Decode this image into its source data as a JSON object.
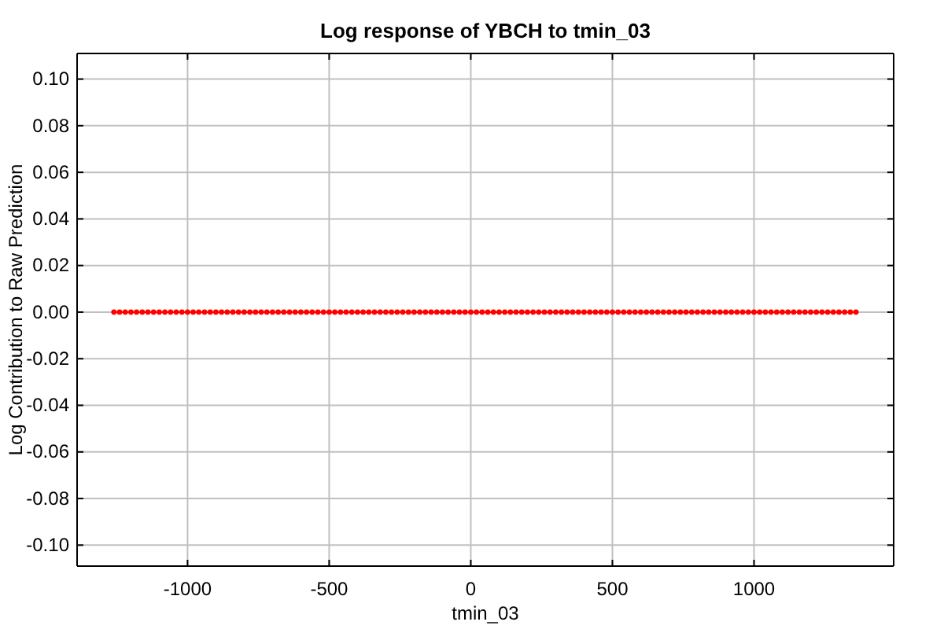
{
  "chart_data": {
    "type": "line",
    "title": "Log response of YBCH to tmin_03",
    "xlabel": "tmin_03",
    "ylabel": "Log Contribution to Raw Prediction",
    "xlim": [
      -1390,
      1493
    ],
    "xticks": [
      -1000,
      -500,
      0,
      500,
      1000
    ],
    "ylim": [
      -0.109,
      0.111
    ],
    "yticks": [
      {
        "value": -0.1,
        "label": "-0.10"
      },
      {
        "value": -0.08,
        "label": "-0.08"
      },
      {
        "value": -0.06,
        "label": "-0.06"
      },
      {
        "value": -0.04,
        "label": "-0.04"
      },
      {
        "value": -0.02,
        "label": "-0.02"
      },
      {
        "value": 0,
        "label": "0.00"
      },
      {
        "value": 0.02,
        "label": "0.02"
      },
      {
        "value": 0.04,
        "label": "0.04"
      },
      {
        "value": 0.06,
        "label": "0.06"
      },
      {
        "value": 0.08,
        "label": "0.08"
      },
      {
        "value": 0.1,
        "label": "0.10"
      }
    ],
    "grid": true,
    "marker": "circle",
    "line_style": "solid",
    "series": [
      {
        "color": "#ff0000",
        "x": [
          -1260,
          -1240,
          -1220,
          -1200,
          -1180,
          -1160,
          -1140,
          -1120,
          -1100,
          -1080,
          -1060,
          -1040,
          -1020,
          -1000,
          -980,
          -960,
          -940,
          -920,
          -900,
          -880,
          -860,
          -840,
          -820,
          -800,
          -780,
          -760,
          -740,
          -720,
          -700,
          -680,
          -660,
          -640,
          -620,
          -600,
          -580,
          -560,
          -540,
          -520,
          -500,
          -480,
          -460,
          -440,
          -420,
          -400,
          -380,
          -360,
          -340,
          -320,
          -300,
          -280,
          -260,
          -240,
          -220,
          -200,
          -180,
          -160,
          -140,
          -120,
          -100,
          -80,
          -60,
          -40,
          -20,
          0,
          20,
          40,
          60,
          80,
          100,
          120,
          140,
          160,
          180,
          200,
          220,
          240,
          260,
          280,
          300,
          320,
          340,
          360,
          380,
          400,
          420,
          440,
          460,
          480,
          500,
          520,
          540,
          560,
          580,
          600,
          620,
          640,
          660,
          680,
          700,
          720,
          740,
          760,
          780,
          800,
          820,
          840,
          860,
          880,
          900,
          920,
          940,
          960,
          980,
          1000,
          1020,
          1040,
          1060,
          1080,
          1100,
          1120,
          1140,
          1160,
          1180,
          1200,
          1220,
          1240,
          1260,
          1280,
          1300,
          1320,
          1340,
          1360
        ],
        "values": [
          0,
          0,
          0,
          0,
          0,
          0,
          0,
          0,
          0,
          0,
          0,
          0,
          0,
          0,
          0,
          0,
          0,
          0,
          0,
          0,
          0,
          0,
          0,
          0,
          0,
          0,
          0,
          0,
          0,
          0,
          0,
          0,
          0,
          0,
          0,
          0,
          0,
          0,
          0,
          0,
          0,
          0,
          0,
          0,
          0,
          0,
          0,
          0,
          0,
          0,
          0,
          0,
          0,
          0,
          0,
          0,
          0,
          0,
          0,
          0,
          0,
          0,
          0,
          0,
          0,
          0,
          0,
          0,
          0,
          0,
          0,
          0,
          0,
          0,
          0,
          0,
          0,
          0,
          0,
          0,
          0,
          0,
          0,
          0,
          0,
          0,
          0,
          0,
          0,
          0,
          0,
          0,
          0,
          0,
          0,
          0,
          0,
          0,
          0,
          0,
          0,
          0,
          0,
          0,
          0,
          0,
          0,
          0,
          0,
          0,
          0,
          0,
          0,
          0,
          0,
          0,
          0,
          0,
          0,
          0,
          0,
          0,
          0,
          0,
          0,
          0,
          0,
          0,
          0,
          0,
          0,
          0
        ]
      }
    ]
  }
}
